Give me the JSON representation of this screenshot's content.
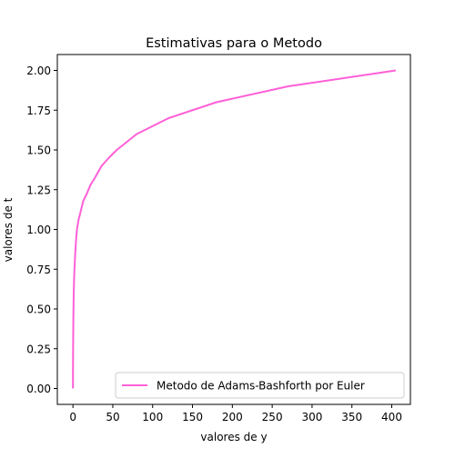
{
  "chart_data": {
    "type": "line",
    "title": "Estimativas para o Metodo",
    "xlabel": "valores de y",
    "ylabel": "valores de t",
    "xlim": [
      -19.6,
      423.4
    ],
    "ylim": [
      -0.1,
      2.1
    ],
    "xticks": [
      0,
      50,
      100,
      150,
      200,
      250,
      300,
      350,
      400
    ],
    "xtick_labels": [
      "0",
      "50",
      "100",
      "150",
      "200",
      "250",
      "300",
      "350",
      "400"
    ],
    "yticks": [
      0.0,
      0.25,
      0.5,
      0.75,
      1.0,
      1.25,
      1.5,
      1.75,
      2.0
    ],
    "ytick_labels": [
      "0.00",
      "0.25",
      "0.50",
      "0.75",
      "1.00",
      "1.25",
      "1.50",
      "1.75",
      "2.00"
    ],
    "grid": false,
    "legend_position": "lower right",
    "series": [
      {
        "name": "Metodo de Adams-Bashforth por Euler",
        "color": "#ff5fd7",
        "x": [
          0.0,
          0.05,
          0.1,
          0.2,
          0.3,
          0.5,
          0.8,
          1.0,
          1.5,
          2.0,
          3.0,
          4.0,
          5.0,
          7.0,
          10.0,
          13.0,
          17.0,
          22.0,
          27.0,
          36.0,
          45.0,
          55.0,
          80.0,
          120.0,
          180.0,
          270.0,
          405.0
        ],
        "y": [
          0.0,
          0.1,
          0.15,
          0.25,
          0.32,
          0.42,
          0.55,
          0.6,
          0.7,
          0.76,
          0.86,
          0.94,
          1.0,
          1.06,
          1.12,
          1.18,
          1.22,
          1.28,
          1.32,
          1.4,
          1.45,
          1.5,
          1.6,
          1.7,
          1.8,
          1.9,
          2.0
        ]
      }
    ]
  }
}
